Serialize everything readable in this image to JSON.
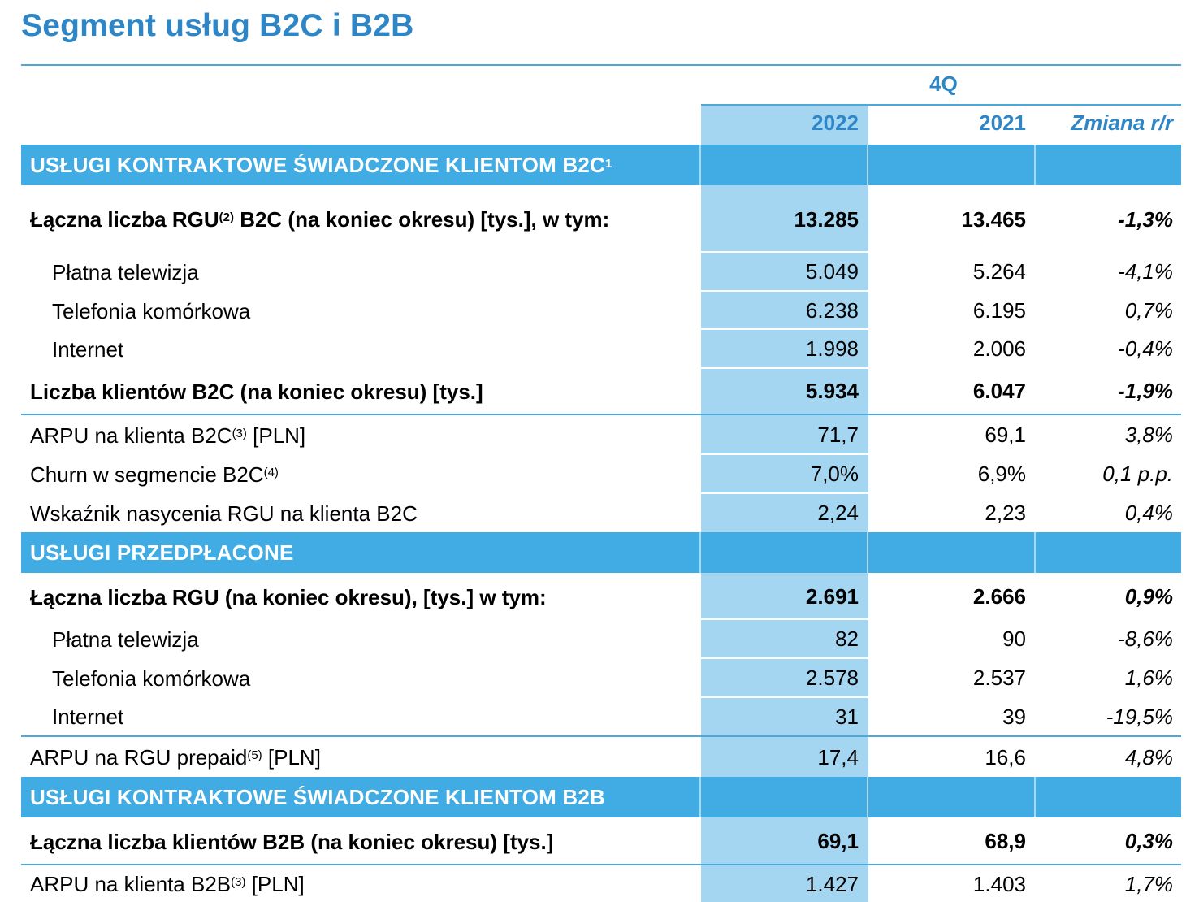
{
  "title": "Segment usług B2C i B2B",
  "header": {
    "period": "4Q",
    "col_2022": "2022",
    "col_2021": "2021",
    "col_change": "Zmiana r/r"
  },
  "sections": {
    "b2c": {
      "title": "USŁUGI KONTRAKTOWE ŚWIADCZONE KLIENTOM B2C",
      "sup": "1"
    },
    "prepaid": {
      "title": "USŁUGI PRZEDPŁACONE"
    },
    "b2b": {
      "title": "USŁUGI KONTRAKTOWE ŚWIADCZONE KLIENTOM B2B"
    }
  },
  "rows": {
    "b2c_rgu": {
      "label_a": "Łączna liczba RGU",
      "sup": "(2)",
      "label_b": " B2C (na koniec okresu) [tys.], w tym:",
      "v2022": "13.285",
      "v2021": "13.465",
      "change": "-1,3%"
    },
    "b2c_tv": {
      "label": "Płatna telewizja",
      "v2022": "5.049",
      "v2021": "5.264",
      "change": "-4,1%"
    },
    "b2c_mobile": {
      "label": "Telefonia komórkowa",
      "v2022": "6.238",
      "v2021": "6.195",
      "change": "0,7%"
    },
    "b2c_internet": {
      "label": "Internet",
      "v2022": "1.998",
      "v2021": "2.006",
      "change": "-0,4%"
    },
    "b2c_clients": {
      "label": "Liczba klientów B2C (na koniec okresu) [tys.]",
      "v2022": "5.934",
      "v2021": "6.047",
      "change": "-1,9%"
    },
    "b2c_arpu": {
      "label_a": "ARPU na klienta B2C",
      "sup": "(3)",
      "label_b": " [PLN]",
      "v2022": "71,7",
      "v2021": "69,1",
      "change": "3,8%"
    },
    "b2c_churn": {
      "label_a": "Churn w segmencie B2C",
      "sup": "(4)",
      "label_b": "",
      "v2022": "7,0%",
      "v2021": "6,9%",
      "change": "0,1 p.p."
    },
    "b2c_saturation": {
      "label": "Wskaźnik nasycenia RGU na klienta B2C",
      "v2022": "2,24",
      "v2021": "2,23",
      "change": "0,4%"
    },
    "pre_rgu": {
      "label": "Łączna liczba RGU (na koniec okresu), [tys.] w tym:",
      "v2022": "2.691",
      "v2021": "2.666",
      "change": "0,9%"
    },
    "pre_tv": {
      "label": "Płatna telewizja",
      "v2022": "82",
      "v2021": "90",
      "change": "-8,6%"
    },
    "pre_mobile": {
      "label": "Telefonia komórkowa",
      "v2022": "2.578",
      "v2021": "2.537",
      "change": "1,6%"
    },
    "pre_internet": {
      "label": "Internet",
      "v2022": "31",
      "v2021": "39",
      "change": "-19,5%"
    },
    "pre_arpu": {
      "label_a": "ARPU na RGU prepaid",
      "sup": "(5)",
      "label_b": " [PLN]",
      "v2022": "17,4",
      "v2021": "16,6",
      "change": "4,8%"
    },
    "b2b_clients": {
      "label": "Łączna liczba klientów B2B (na koniec okresu) [tys.]",
      "v2022": "69,1",
      "v2021": "68,9",
      "change": "0,3%"
    },
    "b2b_arpu": {
      "label_a": "ARPU na klienta B2B",
      "sup": "(3)",
      "label_b": " [PLN]",
      "v2022": "1.427",
      "v2021": "1.403",
      "change": "1,7%"
    }
  }
}
